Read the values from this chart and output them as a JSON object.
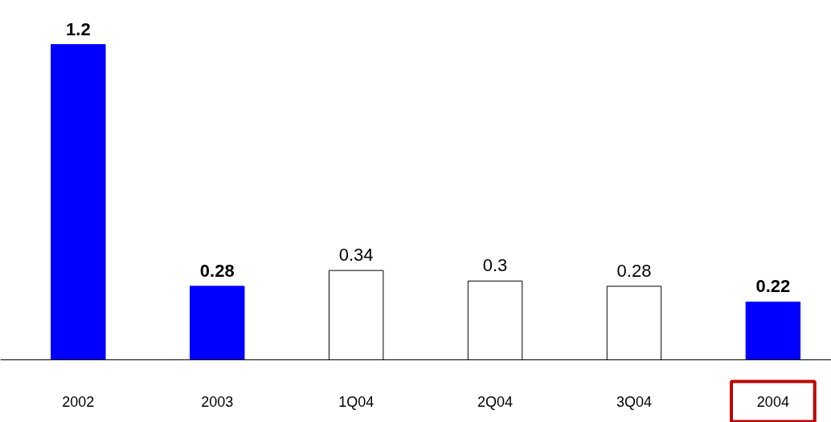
{
  "chart_data": {
    "type": "bar",
    "categories": [
      "2002",
      "2003",
      "1Q04",
      "2Q04",
      "3Q04",
      "2004"
    ],
    "values": [
      1.2,
      0.28,
      0.34,
      0.3,
      0.28,
      0.22
    ],
    "colors": [
      "#0000ff",
      "#0000ff",
      "#ffffff",
      "#ffffff",
      "#ffffff",
      "#0000ff"
    ],
    "data_labels": true
  }
}
